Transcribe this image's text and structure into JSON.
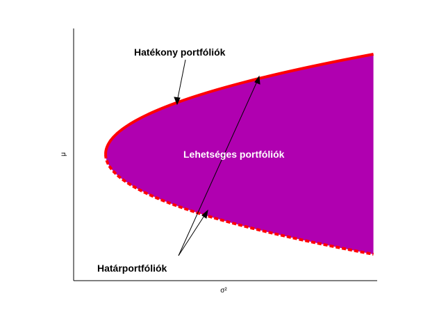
{
  "chart_data": {
    "type": "area",
    "xlabel": "σ²",
    "ylabel": "μ",
    "grid": false,
    "legend": "none",
    "annotations": {
      "efficient": "Hatékony portfóliók",
      "feasible": "Lehetséges portfóliók",
      "frontier": "Határportfóliók"
    },
    "colors": {
      "feasible_fill": "#b000b0",
      "frontier": "#ff0000",
      "axis": "#000000",
      "feasible_text": "#ffffff"
    },
    "frontier_style": {
      "efficient": "solid",
      "inefficient": "dashed"
    }
  }
}
